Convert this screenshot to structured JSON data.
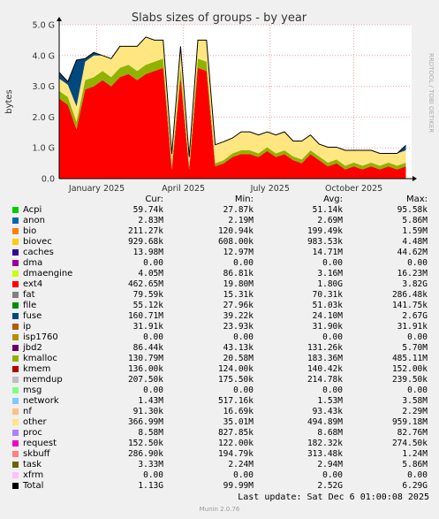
{
  "title": "Slabs sizes of groups - by year",
  "ylabel": "bytes",
  "watermark": "RRDTOOL / TOBI OETIKER",
  "legend_headers": {
    "cur": "Cur:",
    "min": "Min:",
    "avg": "Avg:",
    "max": "Max:"
  },
  "legend": [
    {
      "name": "Acpi",
      "color": "#00cc00",
      "cur": "59.74k",
      "min": "27.87k",
      "avg": "51.14k",
      "max": "95.58k"
    },
    {
      "name": "anon",
      "color": "#0066b3",
      "cur": "2.83M",
      "min": "2.19M",
      "avg": "2.69M",
      "max": "5.86M"
    },
    {
      "name": "bio",
      "color": "#ff8000",
      "cur": "211.27k",
      "min": "120.94k",
      "avg": "199.49k",
      "max": "1.59M"
    },
    {
      "name": "biovec",
      "color": "#ffcc00",
      "cur": "929.68k",
      "min": "608.00k",
      "avg": "983.53k",
      "max": "4.48M"
    },
    {
      "name": "caches",
      "color": "#330099",
      "cur": "13.98M",
      "min": "12.97M",
      "avg": "14.71M",
      "max": "44.62M"
    },
    {
      "name": "dma",
      "color": "#990099",
      "cur": "0.00",
      "min": "0.00",
      "avg": "0.00",
      "max": "0.00"
    },
    {
      "name": "dmaengine",
      "color": "#ccff00",
      "cur": "4.05M",
      "min": "86.81k",
      "avg": "3.16M",
      "max": "16.23M"
    },
    {
      "name": "ext4",
      "color": "#ff0000",
      "cur": "462.65M",
      "min": "19.80M",
      "avg": "1.80G",
      "max": "3.82G"
    },
    {
      "name": "fat",
      "color": "#808080",
      "cur": "79.59k",
      "min": "15.31k",
      "avg": "70.31k",
      "max": "286.48k"
    },
    {
      "name": "file",
      "color": "#008f00",
      "cur": "55.12k",
      "min": "27.96k",
      "avg": "51.03k",
      "max": "141.75k"
    },
    {
      "name": "fuse",
      "color": "#00487d",
      "cur": "160.71M",
      "min": "39.22k",
      "avg": "24.10M",
      "max": "2.67G"
    },
    {
      "name": "ip",
      "color": "#b35a00",
      "cur": "31.91k",
      "min": "23.93k",
      "avg": "31.90k",
      "max": "31.91k"
    },
    {
      "name": "isp1760",
      "color": "#b38f00",
      "cur": "0.00",
      "min": "0.00",
      "avg": "0.00",
      "max": "0.00"
    },
    {
      "name": "jbd2",
      "color": "#6b006b",
      "cur": "86.44k",
      "min": "43.13k",
      "avg": "131.26k",
      "max": "5.70M"
    },
    {
      "name": "kmalloc",
      "color": "#8fb300",
      "cur": "130.79M",
      "min": "20.58M",
      "avg": "183.36M",
      "max": "485.11M"
    },
    {
      "name": "kmem",
      "color": "#b30000",
      "cur": "136.00k",
      "min": "124.00k",
      "avg": "140.42k",
      "max": "152.00k"
    },
    {
      "name": "memdup",
      "color": "#bebebe",
      "cur": "207.50k",
      "min": "175.50k",
      "avg": "214.78k",
      "max": "239.50k"
    },
    {
      "name": "msg",
      "color": "#80ff80",
      "cur": "0.00",
      "min": "0.00",
      "avg": "0.00",
      "max": "0.00"
    },
    {
      "name": "network",
      "color": "#80c9ff",
      "cur": "1.43M",
      "min": "517.16k",
      "avg": "1.53M",
      "max": "3.58M"
    },
    {
      "name": "nf",
      "color": "#ffc080",
      "cur": "91.30k",
      "min": "16.69k",
      "avg": "93.43k",
      "max": "2.29M"
    },
    {
      "name": "other",
      "color": "#ffe680",
      "cur": "366.99M",
      "min": "35.01M",
      "avg": "494.89M",
      "max": "959.18M"
    },
    {
      "name": "proc",
      "color": "#aa80ff",
      "cur": "8.58M",
      "min": "827.85k",
      "avg": "8.68M",
      "max": "82.76M"
    },
    {
      "name": "request",
      "color": "#ee00cc",
      "cur": "152.50k",
      "min": "122.00k",
      "avg": "182.32k",
      "max": "274.50k"
    },
    {
      "name": "skbuff",
      "color": "#ff8080",
      "cur": "286.90k",
      "min": "194.79k",
      "avg": "313.48k",
      "max": "1.24M"
    },
    {
      "name": "task",
      "color": "#666600",
      "cur": "3.33M",
      "min": "2.24M",
      "avg": "2.94M",
      "max": "5.86M"
    },
    {
      "name": "xfrm",
      "color": "#ffbfff",
      "cur": "0.00",
      "min": "0.00",
      "avg": "0.00",
      "max": "0.00"
    },
    {
      "name": "Total",
      "color": "#000000",
      "cur": "1.13G",
      "min": "99.99M",
      "avg": "2.52G",
      "max": "6.29G"
    }
  ],
  "last_update": "Last update: Sat Dec  6 01:00:08 2025",
  "version": "Munin 2.0.76",
  "chart_data": {
    "type": "area",
    "title": "Slabs sizes of groups - by year",
    "ylabel": "bytes",
    "ylim": [
      0,
      5.0
    ],
    "y_unit": "G",
    "yticks": [
      "0.0",
      "1.0 G",
      "2.0 G",
      "3.0 G",
      "4.0 G",
      "5.0 G"
    ],
    "ytick_values": [
      0,
      1,
      2,
      3,
      4,
      5
    ],
    "xticks": [
      "January 2025",
      "April 2025",
      "July 2025",
      "October 2025"
    ],
    "xtick_months": [
      1.3,
      4.3,
      7.3,
      10.2
    ],
    "xlim_months": [
      0,
      12.2
    ],
    "grid": true,
    "series": [
      {
        "name": "ext4",
        "color": "#ff0000",
        "x": [
          0.0,
          0.3,
          0.6,
          0.9,
          1.2,
          1.5,
          1.8,
          2.1,
          2.4,
          2.7,
          3.0,
          3.3,
          3.6,
          3.9,
          4.2,
          4.5,
          4.8,
          5.1,
          5.4,
          5.7,
          6.0,
          6.3,
          6.6,
          6.9,
          7.2,
          7.5,
          7.8,
          8.1,
          8.4,
          8.7,
          9.0,
          9.3,
          9.6,
          9.9,
          10.2,
          10.5,
          10.8,
          11.1,
          11.4,
          11.7,
          12.0
        ],
        "values": [
          2.6,
          2.4,
          1.6,
          2.9,
          3.0,
          3.2,
          3.0,
          3.3,
          3.4,
          3.2,
          3.4,
          3.5,
          3.6,
          0.3,
          3.3,
          0.3,
          3.6,
          3.5,
          0.4,
          0.5,
          0.7,
          0.8,
          0.8,
          0.7,
          0.9,
          0.7,
          0.8,
          0.6,
          0.5,
          0.8,
          0.6,
          0.4,
          0.5,
          0.3,
          0.4,
          0.3,
          0.4,
          0.3,
          0.4,
          0.3,
          0.4
        ]
      },
      {
        "name": "kmalloc",
        "color": "#8fb300",
        "x": [
          0.0,
          0.3,
          0.6,
          0.9,
          1.2,
          1.5,
          1.8,
          2.1,
          2.4,
          2.7,
          3.0,
          3.3,
          3.6,
          3.9,
          4.2,
          4.5,
          4.8,
          5.1,
          5.4,
          5.7,
          6.0,
          6.3,
          6.6,
          6.9,
          7.2,
          7.5,
          7.8,
          8.1,
          8.4,
          8.7,
          9.0,
          9.3,
          9.6,
          9.9,
          10.2,
          10.5,
          10.8,
          11.1,
          11.4,
          11.7,
          12.0
        ],
        "values": [
          0.25,
          0.25,
          0.25,
          0.3,
          0.3,
          0.3,
          0.3,
          0.3,
          0.3,
          0.3,
          0.3,
          0.3,
          0.3,
          0.1,
          0.3,
          0.1,
          0.3,
          0.3,
          0.1,
          0.1,
          0.12,
          0.12,
          0.12,
          0.12,
          0.12,
          0.12,
          0.12,
          0.12,
          0.12,
          0.12,
          0.12,
          0.12,
          0.12,
          0.12,
          0.12,
          0.12,
          0.12,
          0.12,
          0.12,
          0.12,
          0.12
        ]
      },
      {
        "name": "other",
        "color": "#ffe680",
        "x": [
          0.0,
          0.3,
          0.6,
          0.9,
          1.2,
          1.5,
          1.8,
          2.1,
          2.4,
          2.7,
          3.0,
          3.3,
          3.6,
          3.9,
          4.2,
          4.5,
          4.8,
          5.1,
          5.4,
          5.7,
          6.0,
          6.3,
          6.6,
          6.9,
          7.2,
          7.5,
          7.8,
          8.1,
          8.4,
          8.7,
          9.0,
          9.3,
          9.6,
          9.9,
          10.2,
          10.5,
          10.8,
          11.1,
          11.4,
          11.7,
          12.0
        ],
        "values": [
          0.4,
          0.4,
          0.5,
          0.6,
          0.7,
          0.5,
          0.6,
          0.7,
          0.6,
          0.8,
          0.9,
          0.7,
          0.6,
          0.4,
          0.7,
          0.3,
          0.6,
          0.7,
          0.6,
          0.6,
          0.5,
          0.6,
          0.6,
          0.6,
          0.5,
          0.6,
          0.6,
          0.5,
          0.6,
          0.5,
          0.4,
          0.5,
          0.4,
          0.5,
          0.4,
          0.5,
          0.4,
          0.4,
          0.3,
          0.4,
          0.4
        ]
      },
      {
        "name": "fuse",
        "color": "#00487d",
        "x": [
          0.0,
          0.3,
          0.6,
          0.9,
          1.2,
          1.5,
          1.8,
          2.1,
          2.4,
          2.7,
          3.0,
          3.3,
          3.6,
          3.9,
          4.2,
          4.5,
          4.8,
          5.1,
          5.4,
          5.7,
          6.0,
          6.3,
          6.6,
          6.9,
          7.2,
          7.5,
          7.8,
          8.1,
          8.4,
          8.7,
          9.0,
          9.3,
          9.6,
          9.9,
          10.2,
          10.5,
          10.8,
          11.1,
          11.4,
          11.7,
          12.0
        ],
        "values": [
          0.2,
          0.1,
          1.5,
          0.1,
          0.1,
          0.0,
          0.0,
          0.0,
          0.0,
          0.0,
          0.0,
          0.0,
          0.0,
          0.0,
          0.0,
          0.0,
          0.0,
          0.0,
          0.0,
          0.0,
          0.0,
          0.0,
          0.0,
          0.0,
          0.0,
          0.0,
          0.0,
          0.0,
          0.0,
          0.0,
          0.0,
          0.0,
          0.0,
          0.0,
          0.0,
          0.0,
          0.0,
          0.0,
          0.0,
          0.0,
          0.16
        ]
      }
    ]
  }
}
